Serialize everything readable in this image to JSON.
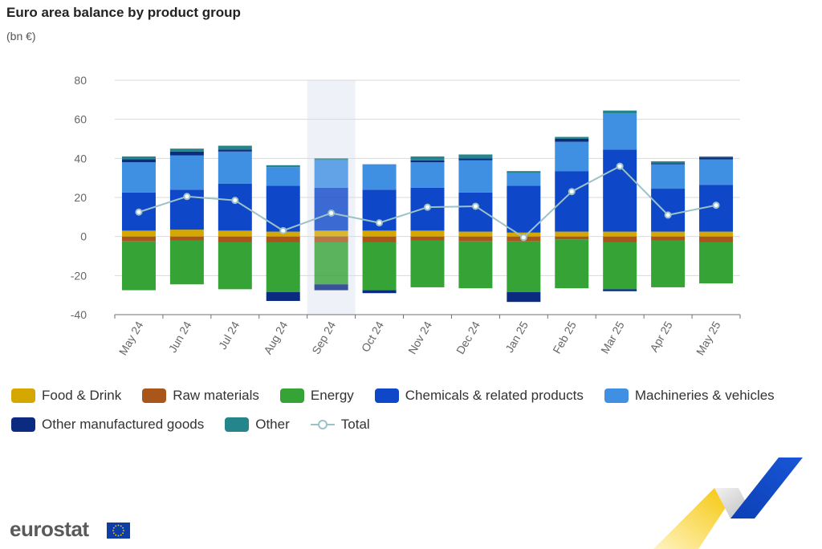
{
  "header": {
    "title": "Euro area balance by product group",
    "subtitle": "(bn €)"
  },
  "branding": {
    "logo_text": "eurostat"
  },
  "chart_data": {
    "type": "bar",
    "stacked": true,
    "title": "Euro area balance by product group",
    "subtitle": "(bn €)",
    "ylim": [
      -40,
      80
    ],
    "yticks": [
      80,
      60,
      40,
      20,
      0,
      -20,
      -40
    ],
    "grid": true,
    "legend_position": "bottom",
    "highlighted_category": "Sep 24",
    "categories": [
      "May 24",
      "Jun 24",
      "Jul 24",
      "Aug 24",
      "Sep 24",
      "Oct 24",
      "Nov 24",
      "Dec 24",
      "Jan 25",
      "Feb 25",
      "Mar 25",
      "Apr 25",
      "May 25"
    ],
    "series": [
      {
        "name": "Food & Drink",
        "color": "#d4a800",
        "values": [
          3,
          3.5,
          3,
          2.5,
          3,
          3,
          3,
          2.5,
          2,
          2.5,
          2.5,
          2.5,
          2.5
        ]
      },
      {
        "name": "Raw materials",
        "color": "#a8561a",
        "values": [
          -2.5,
          -2,
          -3,
          -3,
          -3,
          -3,
          -2,
          -2.5,
          -2.5,
          -1.5,
          -3,
          -2,
          -3
        ]
      },
      {
        "name": "Energy",
        "color": "#36a336",
        "values": [
          -25,
          -22.5,
          -24,
          -25.5,
          -21.5,
          -24.5,
          -24,
          -24,
          -26,
          -25,
          -24,
          -24,
          -21
        ]
      },
      {
        "name": "Chemicals & related products",
        "color": "#0f47c9",
        "values": [
          19.5,
          20.5,
          24,
          23.5,
          22,
          21,
          22,
          20,
          24,
          31,
          42,
          22,
          24
        ]
      },
      {
        "name": "Machineries & vehicles",
        "color": "#3f8fe3",
        "values": [
          15.5,
          17.5,
          16.5,
          9.5,
          14,
          13,
          13,
          16.5,
          6.5,
          15,
          18.5,
          12.5,
          13
        ]
      },
      {
        "name": "Other manufactured goods",
        "color": "#0b2b80",
        "values": [
          1.5,
          2,
          1,
          -4.5,
          -3,
          -1.5,
          1,
          1,
          -5,
          1.5,
          -1,
          0.5,
          1
        ]
      },
      {
        "name": "Other",
        "color": "#24868c",
        "values": [
          1.5,
          1.5,
          2,
          1,
          1,
          0,
          2,
          2,
          1,
          1,
          1.5,
          1,
          0.5
        ]
      }
    ],
    "total": {
      "name": "Total",
      "color": "#9bc2c8",
      "values": [
        12.5,
        20.5,
        18.5,
        3,
        12,
        7,
        15,
        15.5,
        -0.5,
        23,
        36,
        11,
        16
      ]
    }
  }
}
